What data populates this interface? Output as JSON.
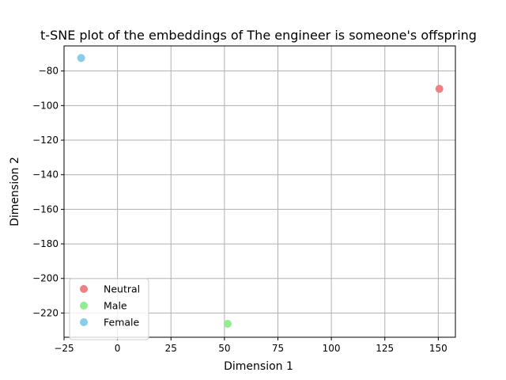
{
  "chart_data": {
    "type": "scatter",
    "title": "t-SNE plot of the embeddings of The engineer is someone's offspring",
    "xlabel": "Dimension 1",
    "ylabel": "Dimension 2",
    "xlim": [
      -25,
      158
    ],
    "ylim": [
      -234,
      -65.5
    ],
    "xticks": [
      -25,
      0,
      25,
      50,
      75,
      100,
      125,
      150
    ],
    "yticks": [
      -220,
      -200,
      -180,
      -160,
      -140,
      -120,
      -100,
      -80
    ],
    "grid": true,
    "legend_position": "lower-left",
    "series": [
      {
        "name": "Neutral",
        "color": "#F08080",
        "points": [
          {
            "x": 150.5,
            "y": -90.3
          }
        ]
      },
      {
        "name": "Male",
        "color": "#90EE90",
        "points": [
          {
            "x": 51.5,
            "y": -226.2
          }
        ]
      },
      {
        "name": "Female",
        "color": "#87CEEB",
        "points": [
          {
            "x": -17,
            "y": -72.5
          }
        ]
      }
    ]
  }
}
